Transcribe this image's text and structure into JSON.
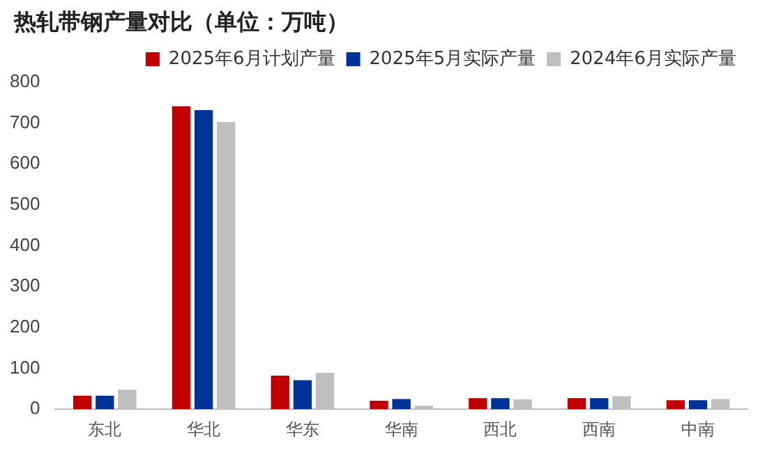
{
  "chart_data": {
    "type": "bar",
    "title": "热轧带钢产量对比（单位：万吨）",
    "categories": [
      "东北",
      "华北",
      "华东",
      "华南",
      "西北",
      "西南",
      "中南"
    ],
    "series": [
      {
        "name": "2025年6月计划产量",
        "color": "#c00000",
        "values": [
          33,
          741,
          82,
          21,
          27,
          27,
          22
        ]
      },
      {
        "name": "2025年5月实际产量",
        "color": "#003399",
        "values": [
          33,
          732,
          71,
          25,
          27,
          27,
          22
        ]
      },
      {
        "name": "2024年6月实际产量",
        "color": "#bfbfbf",
        "values": [
          48,
          703,
          89,
          9,
          24,
          32,
          25
        ]
      }
    ],
    "ylim": [
      0,
      800
    ],
    "yticks": [
      0,
      100,
      200,
      300,
      400,
      500,
      600,
      700,
      800
    ],
    "grid": false,
    "legend": "top"
  }
}
